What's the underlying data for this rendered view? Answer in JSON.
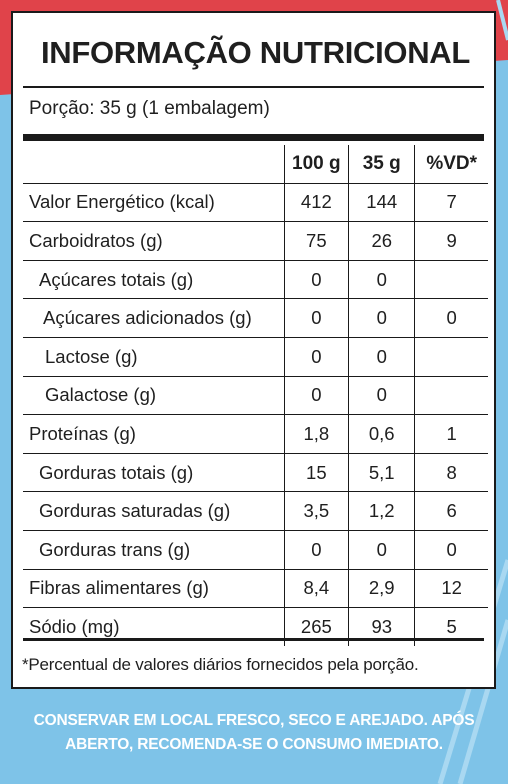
{
  "label": {
    "title": "INFORMAÇÃO NUTRICIONAL",
    "portion": "Porção: 35 g (1 embalagem)",
    "headers": [
      "",
      "100 g",
      "35 g",
      "%VD*"
    ],
    "rows": [
      {
        "name": "Valor Energético (kcal)",
        "per100": "412",
        "per35": "144",
        "vd": "7"
      },
      {
        "name": "Carboidratos (g)",
        "per100": "75",
        "per35": "26",
        "vd": "9"
      },
      {
        "name": "Açúcares totais (g)",
        "per100": "0",
        "per35": "0",
        "vd": ""
      },
      {
        "name": "Açúcares adicionados (g)",
        "per100": "0",
        "per35": "0",
        "vd": "0"
      },
      {
        "name": "Lactose (g)",
        "per100": "0",
        "per35": "0",
        "vd": ""
      },
      {
        "name": "Galactose (g)",
        "per100": "0",
        "per35": "0",
        "vd": ""
      },
      {
        "name": "Proteínas (g)",
        "per100": "1,8",
        "per35": "0,6",
        "vd": "1"
      },
      {
        "name": "Gorduras totais (g)",
        "per100": "15",
        "per35": "5,1",
        "vd": "8"
      },
      {
        "name": "Gorduras saturadas (g)",
        "per100": "3,5",
        "per35": "1,2",
        "vd": "6"
      },
      {
        "name": "Gorduras trans (g)",
        "per100": "0",
        "per35": "0",
        "vd": "0"
      },
      {
        "name": "Fibras alimentares (g)",
        "per100": "8,4",
        "per35": "2,9",
        "vd": "12"
      },
      {
        "name": "Sódio (mg)",
        "per100": "265",
        "per35": "93",
        "vd": "5"
      }
    ],
    "footnote": "*Percentual de valores diários fornecidos pela porção."
  },
  "storage": {
    "line1": "CONSERVAR EM LOCAL FRESCO, SECO E AREJADO. APÓS",
    "line2": "ABERTO, RECOMENDA-SE O CONSUMO IMEDIATO."
  },
  "colors": {
    "background_blue": "#7ec3e8",
    "background_red": "#e0434a",
    "panel": "#ffffff",
    "ink": "#1f1f1f"
  }
}
